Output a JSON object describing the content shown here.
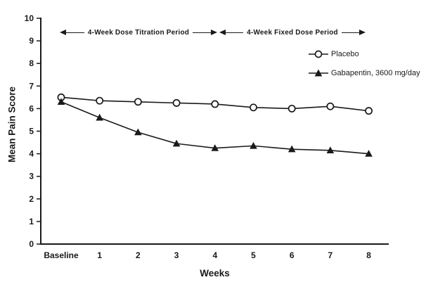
{
  "figure": {
    "background": "#ffffff",
    "ink_color": "#1a1a1a"
  },
  "chart_data": {
    "type": "line",
    "categories": [
      "Baseline",
      "1",
      "2",
      "3",
      "4",
      "5",
      "6",
      "7",
      "8"
    ],
    "series": [
      {
        "name": "Placebo",
        "marker": "open-circle",
        "values": [
          6.5,
          6.35,
          6.3,
          6.25,
          6.2,
          6.05,
          6.0,
          6.1,
          5.9
        ]
      },
      {
        "name": "Gabapentin, 3600 mg/day",
        "marker": "filled-triangle",
        "values": [
          6.3,
          5.6,
          4.95,
          4.45,
          4.25,
          4.35,
          4.2,
          4.15,
          4.0
        ]
      }
    ],
    "title": "",
    "xlabel": "Weeks",
    "ylabel": "Mean Pain Score",
    "ylim": [
      0,
      10
    ],
    "yticks": [
      0,
      1,
      2,
      3,
      4,
      5,
      6,
      7,
      8,
      9,
      10
    ],
    "grid": false,
    "legend_position": "upper-right",
    "annotations": [
      {
        "text": "4-Week Dose Titration Period",
        "span_categories": [
          "Baseline",
          "4"
        ],
        "y": 9.4,
        "style": "double-arrow"
      },
      {
        "text": "4-Week Fixed Dose Period",
        "span_categories": [
          "4",
          "8"
        ],
        "y": 9.4,
        "style": "double-arrow"
      }
    ]
  }
}
